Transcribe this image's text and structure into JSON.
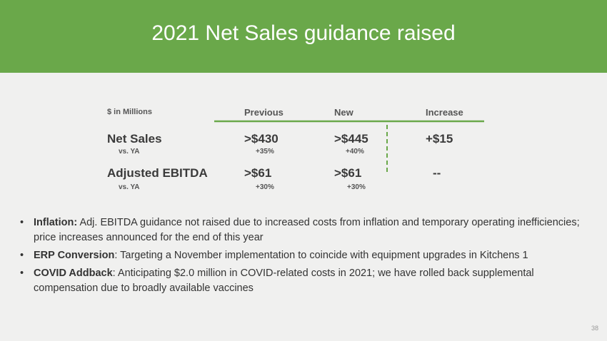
{
  "header": {
    "title": "2021 Net Sales guidance raised"
  },
  "table": {
    "columns": [
      "$ in Millions",
      "Previous",
      "New",
      "Increase"
    ],
    "rows": [
      {
        "label": "Net Sales",
        "sublabel": "vs. YA",
        "previous": ">$430",
        "previous_change": "+35%",
        "new": ">$445",
        "new_change": "+40%",
        "increase": "+$15"
      },
      {
        "label": "Adjusted EBITDA",
        "sublabel": "vs. YA",
        "previous": ">$61",
        "previous_change": "+30%",
        "new": ">$61",
        "new_change": "+30%",
        "increase": "--"
      }
    ]
  },
  "bullets": [
    {
      "label": "Inflation:",
      "text": " Adj. EBITDA guidance not raised due to increased costs from inflation and temporary operating inefficiencies; price increases announced for the end of this year"
    },
    {
      "label": "ERP Conversion",
      "text": ":  Targeting a November implementation to coincide with equipment upgrades in Kitchens 1"
    },
    {
      "label": "COVID Addback",
      "text": ":  Anticipating $2.0 million in COVID-related costs in 2021; we have rolled back supplemental compensation due to broadly available vaccines"
    }
  ],
  "footer": {
    "page_number": "38"
  }
}
